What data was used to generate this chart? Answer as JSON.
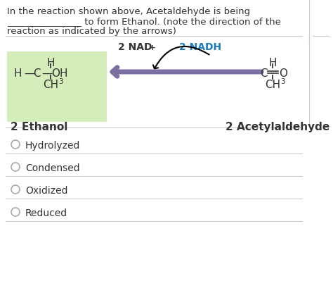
{
  "background_color": "#ffffff",
  "question_text_line1": "In the reaction shown above, Acetaldehyde is being",
  "question_text_line2": "________________ to form Ethanol. (note the direction of the",
  "question_text_line3": "reaction as indicated by the arrows)",
  "nadh_color": "#1a7abf",
  "ethanol_label": "2 Ethanol",
  "acetaldehyde_label": "2 Acetylaldehyde",
  "ethanol_bg_color": "#d4edba",
  "arrow_color": "#7b6fa0",
  "options": [
    "Hydrolyzed",
    "Condensed",
    "Oxidized",
    "Reduced"
  ],
  "font_color": "#333333",
  "divider_color": "#cccccc"
}
